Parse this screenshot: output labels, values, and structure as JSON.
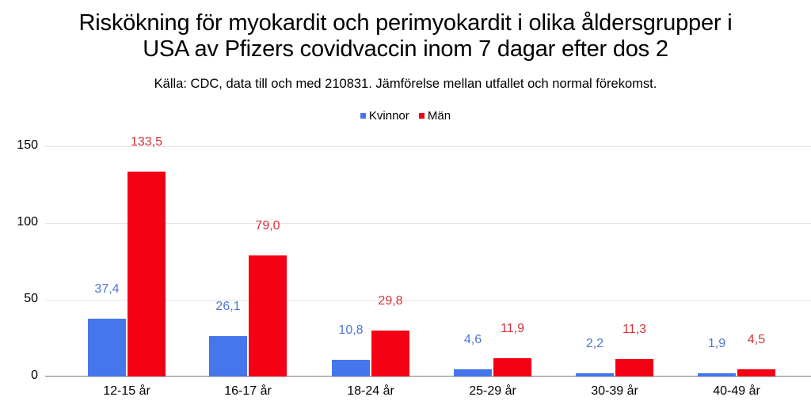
{
  "title_line1": "Riskökning för myokardit och perimyokardit i olika åldersgrupper i",
  "title_line2": "USA av Pfizers covidvaccin inom 7 dagar efter dos 2",
  "subtitle": "Källa: CDC, data till och med 210831. Jämförelse mellan utfallet och normal förekomst.",
  "legend": [
    {
      "label": "Kvinnor",
      "color": "#4676ec"
    },
    {
      "label": "Män",
      "color": "#f40014"
    }
  ],
  "y_ticks": [
    "0",
    "50",
    "100",
    "150"
  ],
  "value_labels": {
    "kvinnor": [
      "37,4",
      "26,1",
      "10,8",
      "4,6",
      "2,2",
      "1,9"
    ],
    "man": [
      "133,5",
      "79,0",
      "29,8",
      "11,9",
      "11,3",
      "4,5"
    ]
  },
  "chart_data": {
    "type": "bar",
    "title": "Riskökning för myokardit och perimyokardit i olika åldersgrupper i USA av Pfizers covidvaccin inom 7 dagar efter dos 2",
    "subtitle": "Källa: CDC, data till och med 210831. Jämförelse mellan utfallet och normal förekomst.",
    "categories": [
      "12-15 år",
      "16-17 år",
      "18-24 år",
      "25-29 år",
      "30-39 år",
      "40-49 år"
    ],
    "series": [
      {
        "name": "Kvinnor",
        "color": "#4676ec",
        "values": [
          37.4,
          26.1,
          10.8,
          4.6,
          2.2,
          1.9
        ]
      },
      {
        "name": "Män",
        "color": "#f40014",
        "values": [
          133.5,
          79.0,
          29.8,
          11.9,
          11.3,
          4.5
        ]
      }
    ],
    "xlabel": "",
    "ylabel": "",
    "ylim": [
      0,
      150
    ],
    "yticks": [
      0,
      50,
      100,
      150
    ],
    "grid": true,
    "legend_position": "top",
    "data_labels": true
  }
}
